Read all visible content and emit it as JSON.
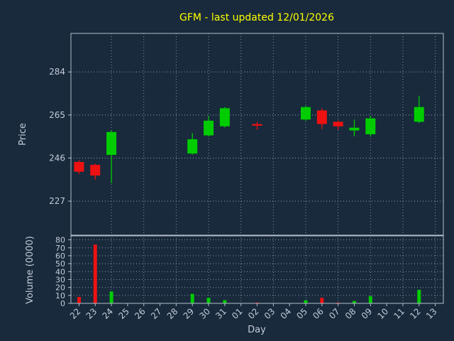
{
  "colors": {
    "background": "#182a3c",
    "up": "#00cc00",
    "down": "#ee1111",
    "title": "#ffff00",
    "axis_text": "#c3cbdc",
    "grid": "#93a1b1",
    "spine": "#b4bfcc"
  },
  "chart_data": {
    "type": "candlestick+volume",
    "title": "GFM - last updated 12/01/2026",
    "xlabel": "Day",
    "price_ylabel": "Price",
    "volume_ylabel": "Volume (0000)",
    "categories": [
      "22",
      "23",
      "24",
      "25",
      "26",
      "27",
      "28",
      "29",
      "30",
      "31",
      "01",
      "02",
      "03",
      "04",
      "05",
      "06",
      "07",
      "08",
      "09",
      "10",
      "11",
      "12",
      "13"
    ],
    "price_ticks": [
      227,
      246,
      265,
      284
    ],
    "price_ylim": [
      212,
      301
    ],
    "volume_ticks": [
      0,
      10,
      20,
      30,
      40,
      50,
      60,
      70,
      80
    ],
    "volume_ylim": [
      0,
      85
    ],
    "grid": "dotted",
    "candles": [
      {
        "day": "22",
        "open": 244.3,
        "high": 245.0,
        "low": 239.0,
        "close": 240.0,
        "volume": 8
      },
      {
        "day": "23",
        "open": 243.0,
        "high": 243.5,
        "low": 236.5,
        "close": 238.3,
        "volume": 74
      },
      {
        "day": "24",
        "open": 247.4,
        "high": 258.0,
        "low": 235.0,
        "close": 257.5,
        "volume": 15
      },
      {
        "day": "29",
        "open": 248.0,
        "high": 257.0,
        "low": 247.5,
        "close": 254.3,
        "volume": 12
      },
      {
        "day": "30",
        "open": 256.0,
        "high": 264.7,
        "low": 255.5,
        "close": 262.5,
        "volume": 7
      },
      {
        "day": "31",
        "open": 260.0,
        "high": 268.5,
        "low": 259.5,
        "close": 268.0,
        "volume": 4
      },
      {
        "day": "02",
        "open": 261.0,
        "high": 262.0,
        "low": 258.5,
        "close": 260.3,
        "volume": 1
      },
      {
        "day": "05",
        "open": 263.0,
        "high": 269.0,
        "low": 262.5,
        "close": 268.5,
        "volume": 4
      },
      {
        "day": "06",
        "open": 267.0,
        "high": 268.0,
        "low": 258.8,
        "close": 261.0,
        "volume": 7
      },
      {
        "day": "07",
        "open": 262.0,
        "high": 262.5,
        "low": 258.5,
        "close": 260.0,
        "volume": 1
      },
      {
        "day": "08",
        "open": 258.2,
        "high": 263.0,
        "low": 255.6,
        "close": 259.4,
        "volume": 3
      },
      {
        "day": "09",
        "open": 256.5,
        "high": 264.5,
        "low": 255.5,
        "close": 263.5,
        "volume": 9
      },
      {
        "day": "12",
        "open": 262.0,
        "high": 273.5,
        "low": 261.5,
        "close": 268.5,
        "volume": 17
      }
    ]
  }
}
